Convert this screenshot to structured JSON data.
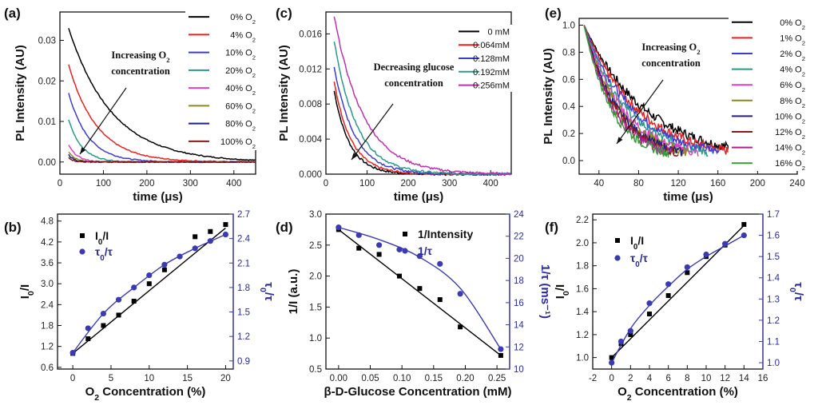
{
  "chart_data": [
    {
      "id": "a",
      "panel_label": "(a)",
      "type": "line",
      "xlabel": "time (μs)",
      "ylabel": "PL Intensity (AU)",
      "xlim": [
        0,
        450
      ],
      "ylim": [
        -0.003,
        0.037
      ],
      "xticks": [
        0,
        100,
        200,
        300,
        400
      ],
      "yticks": [
        0.0,
        0.01,
        0.02,
        0.03
      ],
      "ytick_labels": [
        "0.00",
        "0.01",
        "0.02",
        "0.03"
      ],
      "legend": "top-right",
      "annotation": [
        "Increasing O₂",
        "concentration"
      ],
      "x_range": [
        20,
        450
      ],
      "series": [
        {
          "name": "0% O₂",
          "color": "#000000",
          "y0": 0.033,
          "tau": 100
        },
        {
          "name": "4% O₂",
          "color": "#e8231f",
          "y0": 0.024,
          "tau": 65
        },
        {
          "name": "10% O₂",
          "color": "#3d3dd6",
          "y0": 0.017,
          "tau": 45
        },
        {
          "name": "20% O₂",
          "color": "#2a9a8a",
          "y0": 0.0105,
          "tau": 30
        },
        {
          "name": "40% O₂",
          "color": "#e040c0",
          "y0": 0.0042,
          "tau": 20
        },
        {
          "name": "60% O₂",
          "color": "#8a8a1a",
          "y0": 0.0025,
          "tau": 16
        },
        {
          "name": "80% O₂",
          "color": "#1e1e8c",
          "y0": 0.0018,
          "tau": 13
        },
        {
          "name": "100% O₂",
          "color": "#8a1a1a",
          "y0": 0.0012,
          "tau": 10
        }
      ]
    },
    {
      "id": "c",
      "panel_label": "(c)",
      "type": "line",
      "xlabel": "time (μs)",
      "ylabel": "PL Intensity (AU)",
      "xlim": [
        0,
        450
      ],
      "ylim": [
        0,
        0.0185
      ],
      "xticks": [
        0,
        100,
        200,
        300,
        400
      ],
      "yticks": [
        0.0,
        0.004,
        0.008,
        0.012,
        0.016
      ],
      "ytick_labels": [
        "0.000",
        "0.004",
        "0.008",
        "0.012",
        "0.016"
      ],
      "legend": "top-right",
      "annotation": [
        "Decreasing glucose",
        "concentration"
      ],
      "x_range": [
        20,
        450
      ],
      "series": [
        {
          "name": "0 mM",
          "color": "#000000",
          "y0": 0.0095,
          "tau": 38
        },
        {
          "name": "0.064mM",
          "color": "#e8231f",
          "y0": 0.0105,
          "tau": 42
        },
        {
          "name": "0.128mM",
          "color": "#3d3dd6",
          "y0": 0.0122,
          "tau": 50
        },
        {
          "name": "0.192mM",
          "color": "#2a9a8a",
          "y0": 0.0152,
          "tau": 55
        },
        {
          "name": "0.256mM",
          "color": "#c030b0",
          "y0": 0.018,
          "tau": 72
        }
      ]
    },
    {
      "id": "e",
      "panel_label": "(e)",
      "type": "line",
      "xlabel": "time (μs)",
      "ylabel": "PL Intensity (AU)",
      "xlim": [
        20,
        240
      ],
      "ylim": [
        -0.1,
        1.05
      ],
      "xticks": [
        40,
        80,
        120,
        160,
        200,
        240
      ],
      "yticks": [
        0.0,
        0.2,
        0.4,
        0.6,
        0.8,
        1.0
      ],
      "ytick_labels": [
        "0.0",
        "0.2",
        "0.4",
        "0.6",
        "0.8",
        "1.0"
      ],
      "legend": "right",
      "annotation": [
        "Increasing O₂",
        "concentration"
      ],
      "series": [
        {
          "name": "0% O₂",
          "color": "#000000",
          "tau": 63,
          "xend": 180
        },
        {
          "name": "1% O₂",
          "color": "#e8231f",
          "tau": 55,
          "xend": 170
        },
        {
          "name": "2% O₂",
          "color": "#3d3dd6",
          "tau": 50,
          "xend": 160
        },
        {
          "name": "4% O₂",
          "color": "#2a9a8a",
          "tau": 45,
          "xend": 150
        },
        {
          "name": "6% O₂",
          "color": "#e040c0",
          "tau": 40,
          "xend": 140
        },
        {
          "name": "8% O₂",
          "color": "#8a8a1a",
          "tau": 37,
          "xend": 130
        },
        {
          "name": "10% O₂",
          "color": "#1e1e8c",
          "tau": 35,
          "xend": 125
        },
        {
          "name": "12% O₂",
          "color": "#8a1a1a",
          "tau": 33,
          "xend": 120
        },
        {
          "name": "14% O₂",
          "color": "#b02090",
          "tau": 31,
          "xend": 115
        },
        {
          "name": "16% O₂",
          "color": "#3a9a3a",
          "tau": 29,
          "xend": 110
        }
      ]
    },
    {
      "id": "b",
      "panel_label": "(b)",
      "type": "scatter",
      "xlabel": "O₂ Concentration (%)",
      "ylabel": "I₀/I",
      "y2label": "τ₀/τ",
      "xlim": [
        -2,
        21
      ],
      "ylim": [
        0.55,
        5.0
      ],
      "y2lim": [
        0.8,
        2.7
      ],
      "xticks": [
        0,
        5,
        10,
        15,
        20
      ],
      "yticks": [
        0.6,
        1.2,
        1.8,
        2.4,
        3.0,
        3.6,
        4.2,
        4.8
      ],
      "ytick_labels": [
        "0.6",
        "1.2",
        "1.8",
        "2.4",
        "3.0",
        "3.6",
        "4.2",
        "4.8"
      ],
      "y2ticks": [
        0.9,
        1.2,
        1.5,
        1.8,
        2.1,
        2.4,
        2.7
      ],
      "y2tick_labels": [
        "0.9",
        "1.2",
        "1.5",
        "1.8",
        "2.1",
        "2.4",
        "2.7"
      ],
      "legend": "top-left",
      "series": [
        {
          "name": "I₀/I",
          "axis": "left",
          "marker": "square",
          "color": "#000000",
          "x": [
            0,
            2,
            4,
            6,
            8,
            10,
            12,
            16,
            18,
            20
          ],
          "y": [
            1.0,
            1.42,
            1.8,
            2.1,
            2.5,
            3.0,
            3.4,
            4.35,
            4.5,
            4.7
          ],
          "fit": {
            "kind": "linear",
            "x": [
              0,
              20
            ],
            "y": [
              1.0,
              4.6
            ]
          }
        },
        {
          "name": "τ₀/τ",
          "axis": "right",
          "marker": "circle",
          "color": "#3a3ab4",
          "x": [
            0,
            2,
            4,
            6,
            8,
            10,
            12,
            14,
            16,
            18,
            20
          ],
          "y": [
            1.0,
            1.3,
            1.48,
            1.65,
            1.8,
            1.95,
            2.08,
            2.18,
            2.28,
            2.37,
            2.45
          ],
          "fit": {
            "kind": "smooth",
            "x": [
              0,
              4,
              8,
              12,
              16,
              20
            ],
            "y": [
              1.0,
              1.48,
              1.8,
              2.08,
              2.28,
              2.45
            ]
          }
        }
      ]
    },
    {
      "id": "d",
      "panel_label": "(d)",
      "type": "scatter",
      "xlabel": "β-D-Glucose Concentration (mM)",
      "ylabel": "1/I (a.u.)",
      "y2label": "1/τ (ms⁻¹)",
      "xlim": [
        -0.02,
        0.27
      ],
      "ylim": [
        0.5,
        3.0
      ],
      "y2lim": [
        10,
        24
      ],
      "xticks": [
        0.0,
        0.05,
        0.1,
        0.15,
        0.2,
        0.25
      ],
      "xtick_labels": [
        "0.00",
        "0.05",
        "0.10",
        "0.15",
        "0.20",
        "0.25"
      ],
      "yticks": [
        0.5,
        1.0,
        1.5,
        2.0,
        2.5,
        3.0
      ],
      "ytick_labels": [
        "0.5",
        "1.0",
        "1.5",
        "2.0",
        "2.5",
        "3.0"
      ],
      "y2ticks": [
        10,
        12,
        14,
        16,
        18,
        20,
        22,
        24
      ],
      "y2tick_labels": [
        "10",
        "12",
        "14",
        "16",
        "18",
        "20",
        "22",
        "24"
      ],
      "legend": "top-right",
      "series": [
        {
          "name": "1/Intensity",
          "axis": "left",
          "marker": "square",
          "color": "#000000",
          "x": [
            0.0,
            0.032,
            0.064,
            0.096,
            0.128,
            0.16,
            0.192,
            0.256
          ],
          "y": [
            2.75,
            2.45,
            2.35,
            2.0,
            1.8,
            1.62,
            1.18,
            0.72
          ],
          "fit": {
            "kind": "linear",
            "x": [
              0.0,
              0.256
            ],
            "y": [
              2.75,
              0.72
            ]
          }
        },
        {
          "name": "1/τ",
          "axis": "right",
          "marker": "circle",
          "color": "#3a3ab4",
          "x": [
            0.0,
            0.032,
            0.064,
            0.096,
            0.128,
            0.16,
            0.192,
            0.256
          ],
          "y": [
            22.8,
            22.1,
            21.2,
            20.8,
            20.2,
            19.5,
            16.8,
            11.8
          ],
          "fit": {
            "kind": "smooth",
            "x": [
              0.0,
              0.064,
              0.128,
              0.192,
              0.256
            ],
            "y": [
              22.8,
              21.7,
              20.1,
              17.3,
              11.8
            ]
          }
        }
      ]
    },
    {
      "id": "f",
      "panel_label": "(f)",
      "type": "scatter",
      "xlabel": "O₂ Concentration (%)",
      "ylabel": "I₀/I",
      "y2label": "τ₀/τ",
      "xlim": [
        -2,
        16
      ],
      "ylim": [
        0.9,
        2.25
      ],
      "y2lim": [
        0.97,
        1.7
      ],
      "xticks": [
        -2,
        0,
        2,
        4,
        6,
        8,
        10,
        12,
        14,
        16
      ],
      "yticks": [
        1.0,
        1.2,
        1.4,
        1.6,
        1.8,
        2.0,
        2.2
      ],
      "ytick_labels": [
        "1.0",
        "1.2",
        "1.4",
        "1.6",
        "1.8",
        "2.0",
        "2.2"
      ],
      "y2ticks": [
        1.0,
        1.1,
        1.2,
        1.3,
        1.4,
        1.5,
        1.6,
        1.7
      ],
      "y2tick_labels": [
        "1.0",
        "1.1",
        "1.2",
        "1.3",
        "1.4",
        "1.5",
        "1.6",
        "1.7"
      ],
      "legend": "top-left",
      "series": [
        {
          "name": "I₀/I",
          "axis": "left",
          "marker": "square",
          "color": "#000000",
          "x": [
            0,
            1,
            2,
            4,
            6,
            8,
            10,
            12,
            14
          ],
          "y": [
            1.0,
            1.12,
            1.2,
            1.38,
            1.54,
            1.74,
            1.88,
            1.98,
            2.16
          ],
          "fit": {
            "kind": "linear",
            "x": [
              0,
              14
            ],
            "y": [
              1.0,
              2.15
            ]
          }
        },
        {
          "name": "τ₀/τ",
          "axis": "right",
          "marker": "circle",
          "color": "#3a3ab4",
          "x": [
            0,
            1,
            2,
            4,
            6,
            8,
            10,
            12,
            14
          ],
          "y": [
            1.0,
            1.1,
            1.15,
            1.28,
            1.37,
            1.45,
            1.51,
            1.56,
            1.6
          ],
          "fit": {
            "kind": "smooth",
            "x": [
              0,
              2,
              4,
              6,
              8,
              10,
              12,
              14
            ],
            "y": [
              1.0,
              1.16,
              1.27,
              1.36,
              1.44,
              1.5,
              1.55,
              1.6
            ]
          }
        }
      ]
    }
  ]
}
